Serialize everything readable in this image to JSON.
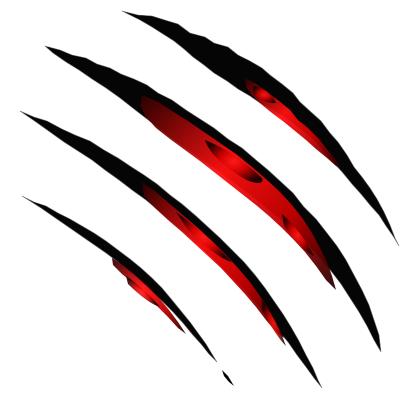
{
  "graphic": {
    "name": "claw-scratch-marks",
    "background_color": "#ffffff",
    "colors": {
      "outer": "#050505",
      "inner_dark": "#3a0000",
      "inner_mid": "#a00000",
      "inner_bright": "#ff1010",
      "rim_highlight": "#8a8a8a"
    },
    "scratch_count": 4
  }
}
